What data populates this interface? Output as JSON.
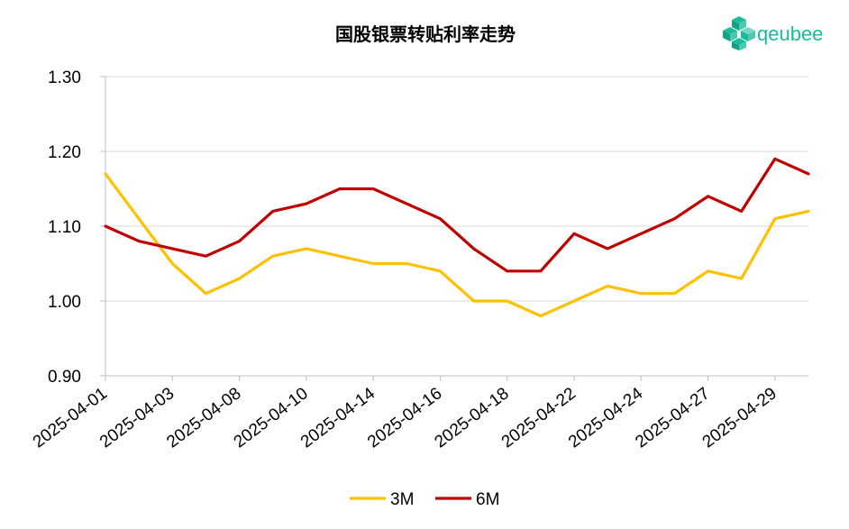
{
  "logo": {
    "text": "qeubee",
    "color": "#1ABC9C"
  },
  "chart_data": {
    "type": "line",
    "title": "国股银票转贴利率走势",
    "ylim": [
      0.9,
      1.3
    ],
    "yticks": [
      "1.30",
      "1.20",
      "1.10",
      "1.00",
      "0.90"
    ],
    "yticks_values": [
      1.3,
      1.2,
      1.1,
      1.0,
      0.9
    ],
    "grid": true,
    "legend_position": "bottom",
    "x_tick_labels": [
      "2025-04-01",
      "2025-04-03",
      "2025-04-08",
      "2025-04-10",
      "2025-04-14",
      "2025-04-16",
      "2025-04-18",
      "2025-04-22",
      "2025-04-24",
      "2025-04-27",
      "2025-04-29"
    ],
    "x": [
      "2025-04-01",
      "2025-04-02",
      "2025-04-03",
      "2025-04-07",
      "2025-04-08",
      "2025-04-09",
      "2025-04-10",
      "2025-04-11",
      "2025-04-14",
      "2025-04-15",
      "2025-04-16",
      "2025-04-17",
      "2025-04-18",
      "2025-04-21",
      "2025-04-22",
      "2025-04-23",
      "2025-04-24",
      "2025-04-25",
      "2025-04-27",
      "2025-04-28",
      "2025-04-29",
      "2025-04-30"
    ],
    "series": [
      {
        "name": "3M",
        "color": "#FFC000",
        "values": [
          1.17,
          1.11,
          1.05,
          1.01,
          1.03,
          1.06,
          1.07,
          1.06,
          1.05,
          1.05,
          1.04,
          1.0,
          1.0,
          0.98,
          1.0,
          1.02,
          1.01,
          1.01,
          1.04,
          1.03,
          1.11,
          1.12
        ]
      },
      {
        "name": "6M",
        "color": "#C00000",
        "values": [
          1.1,
          1.08,
          1.07,
          1.06,
          1.08,
          1.12,
          1.13,
          1.15,
          1.15,
          1.13,
          1.11,
          1.07,
          1.04,
          1.04,
          1.09,
          1.07,
          1.09,
          1.11,
          1.14,
          1.12,
          1.19,
          1.17
        ]
      }
    ]
  }
}
